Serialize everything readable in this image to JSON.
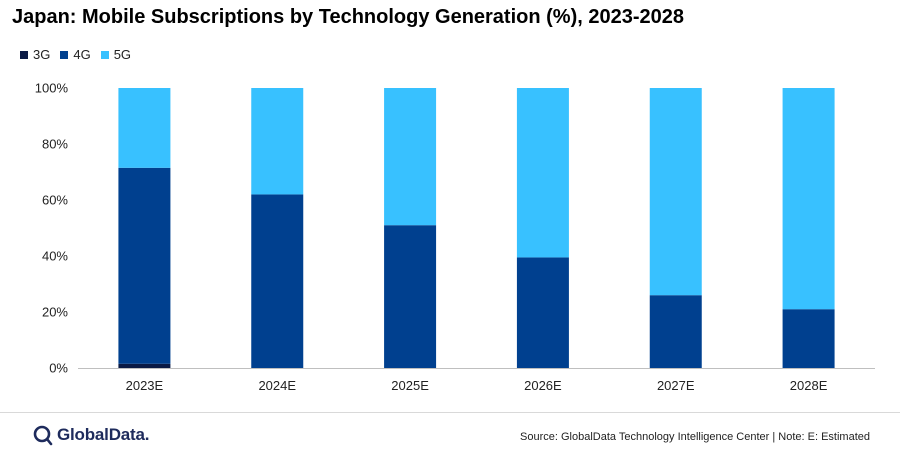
{
  "chart_data": {
    "type": "bar",
    "stacked": true,
    "title": "Japan: Mobile Subscriptions by Technology Generation (%), 2023-2028",
    "categories": [
      "2023E",
      "2024E",
      "2025E",
      "2026E",
      "2027E",
      "2028E"
    ],
    "series": [
      {
        "name": "3G",
        "color": "#0a1a45",
        "values": [
          1.5,
          0,
          0,
          0,
          0,
          0
        ]
      },
      {
        "name": "4G",
        "color": "#00408f",
        "values": [
          70,
          62,
          51,
          39.5,
          26,
          21
        ]
      },
      {
        "name": "5G",
        "color": "#38c1ff",
        "values": [
          28.5,
          38,
          49,
          60.5,
          74,
          79
        ]
      }
    ],
    "yticks": [
      "0%",
      "20%",
      "40%",
      "60%",
      "80%",
      "100%"
    ],
    "ylim": [
      0,
      100
    ],
    "xlabel": "",
    "ylabel": "",
    "legend_position": "top-left"
  },
  "footer": {
    "logo_text": "GlobalData.",
    "source": "Source: GlobalData Technology Intelligence Center | Note: E: Estimated"
  }
}
